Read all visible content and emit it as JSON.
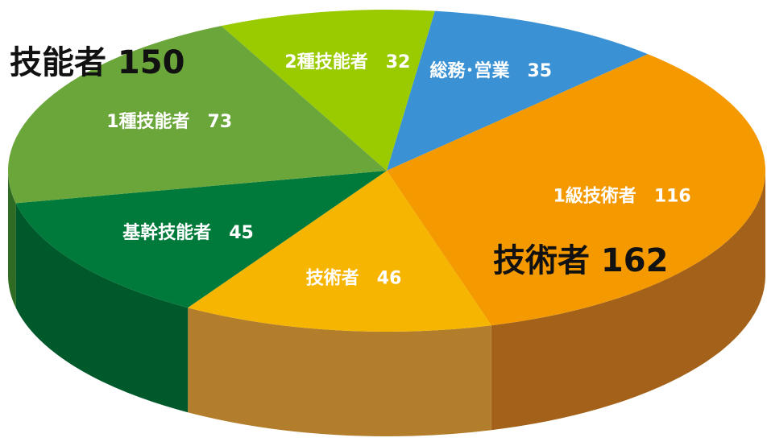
{
  "chart_data": {
    "type": "pie3d",
    "categories": [
      "総務･営業",
      "1級技術者",
      "技術者",
      "基幹技能者",
      "1種技能者",
      "2種技能者"
    ],
    "values": [
      35,
      116,
      46,
      45,
      73,
      32
    ],
    "colors": [
      "#3a91d3",
      "#f49a00",
      "#f6b500",
      "#007a3a",
      "#6ba63b",
      "#9acb00"
    ],
    "side_colors": [
      "#245f8f",
      "#a3611a",
      "#b27e2c",
      "#00592a",
      "#2f6b22",
      "#5f8a00"
    ],
    "annotations": [
      {
        "text": "技能者 150"
      },
      {
        "text": "技術者 162"
      }
    ]
  }
}
